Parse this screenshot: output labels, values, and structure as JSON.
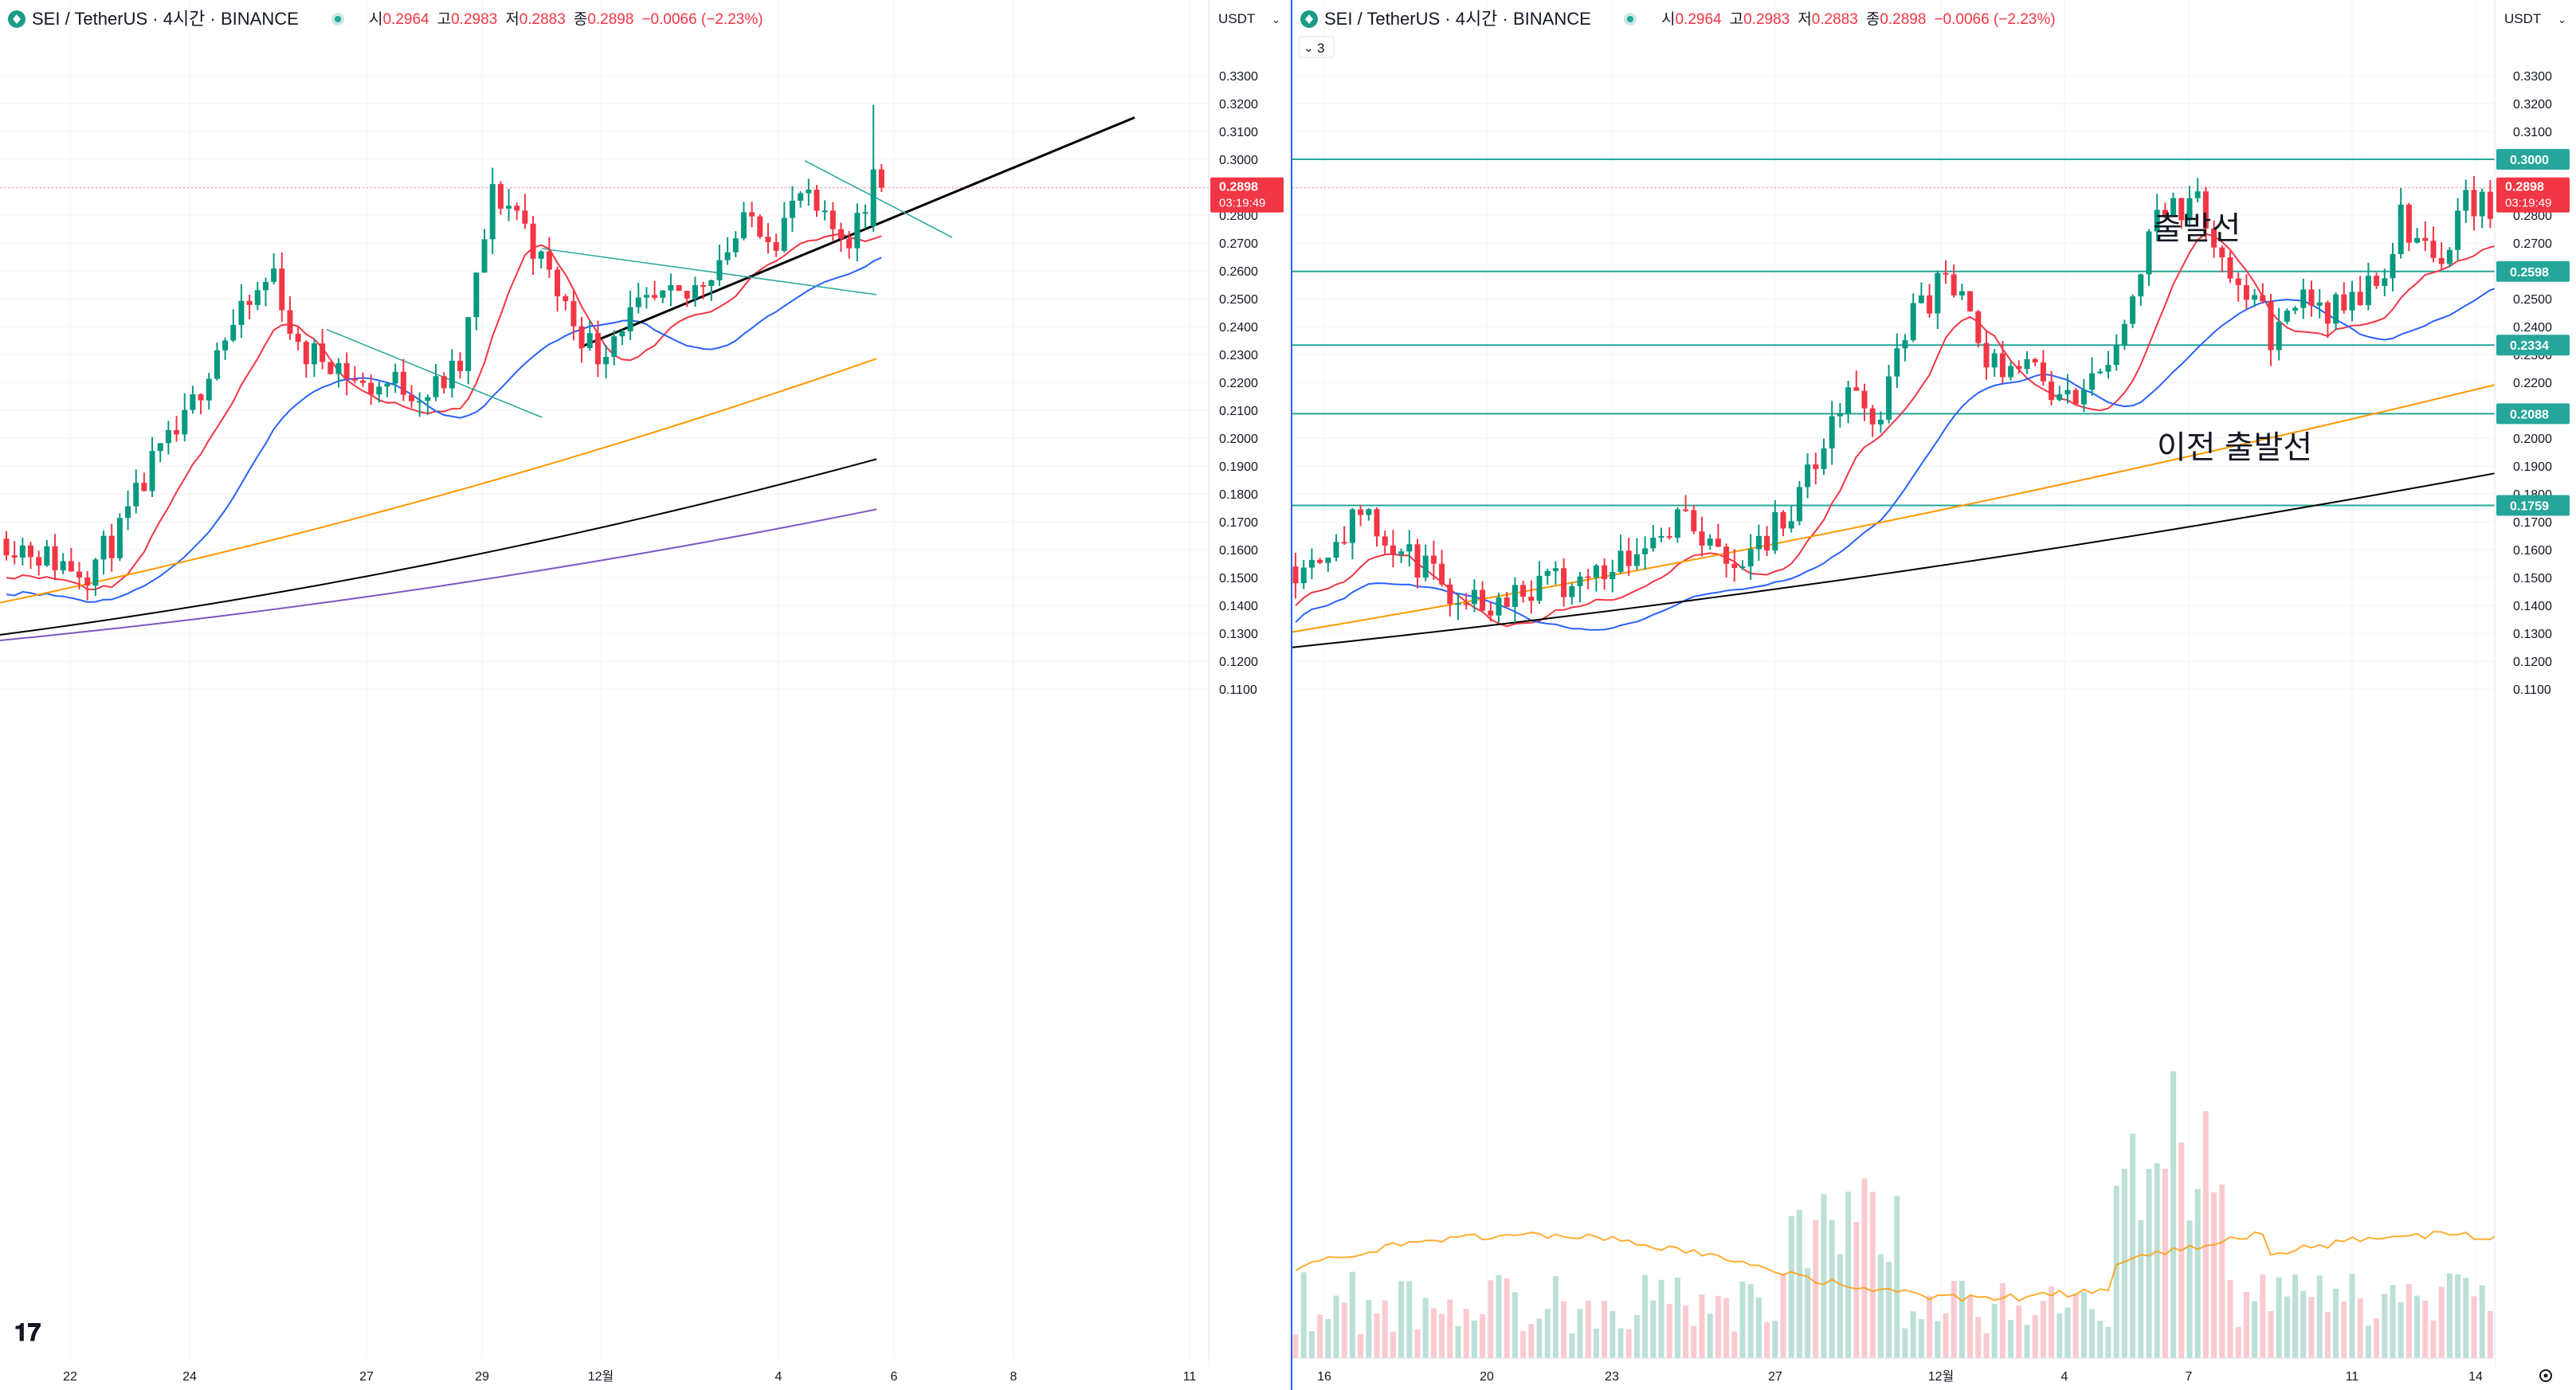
{
  "legend": {
    "symbol": "SEI",
    "quote": "TetherUS",
    "interval": "4시간",
    "exchange": "BINANCE",
    "ohlc": [
      {
        "key": "시",
        "value": "0.2964"
      },
      {
        "key": "고",
        "value": "0.2983"
      },
      {
        "key": "저",
        "value": "0.2883"
      },
      {
        "key": "종",
        "value": "0.2898"
      }
    ],
    "change": "−0.0066 (−2.23%)"
  },
  "currency_button": "USDT",
  "indicator_count": "3",
  "current_price": "0.2898",
  "countdown": "03:19:49",
  "colors": {
    "up": "#089981",
    "down": "#f23645",
    "ma_short": "#f23645",
    "ma_mid": "#2962ff",
    "ma_orange": "#ff9800",
    "ma_long": "#000000",
    "ma_purple": "#7e57c2",
    "level_line": "#26a69a",
    "accent": "#2962ff"
  },
  "left_chart": {
    "price_ticks": [
      "0.3300",
      "0.3200",
      "0.3100",
      "0.3000",
      "0.2900",
      "0.2800",
      "0.2700",
      "0.2600",
      "0.2500",
      "0.2400",
      "0.2300",
      "0.2200",
      "0.2100",
      "0.2000",
      "0.1900",
      "0.1800",
      "0.1700",
      "0.1600",
      "0.1500",
      "0.1400",
      "0.1300",
      "0.1200",
      "0.1100"
    ],
    "time_ticks": [
      "22",
      "24",
      "27",
      "29",
      "12월",
      "4",
      "6",
      "8",
      "11"
    ]
  },
  "right_chart": {
    "price_ticks": [
      "0.3300",
      "0.3200",
      "0.3100",
      "0.3000",
      "0.2900",
      "0.2800",
      "0.2700",
      "0.2600",
      "0.2500",
      "0.2400",
      "0.2300",
      "0.2200",
      "0.2100",
      "0.2000",
      "0.1900",
      "0.1800",
      "0.1700",
      "0.1600",
      "0.1500",
      "0.1400",
      "0.1300",
      "0.1200",
      "0.1100"
    ],
    "time_ticks": [
      "16",
      "20",
      "23",
      "27",
      "12월",
      "4",
      "7",
      "11",
      "14"
    ],
    "levels": [
      "0.3000",
      "0.2598",
      "0.2334",
      "0.2088",
      "0.1759"
    ],
    "annotations": [
      "출발선",
      "이전 출발선"
    ]
  },
  "chart_data": [
    {
      "type": "candlestick",
      "title": "SEI / TetherUS · 4시간 · BINANCE",
      "ylim": [
        0.1065,
        0.3355
      ],
      "candles_ohlc_sample": [
        [
          0.16,
          0.168,
          0.156,
          0.165
        ],
        [
          0.165,
          0.172,
          0.162,
          0.16
        ],
        [
          0.16,
          0.164,
          0.143,
          0.145
        ],
        [
          0.145,
          0.162,
          0.143,
          0.16
        ],
        [
          0.16,
          0.175,
          0.158,
          0.17
        ],
        [
          0.17,
          0.188,
          0.169,
          0.186
        ],
        [
          0.186,
          0.206,
          0.184,
          0.201
        ],
        [
          0.201,
          0.206,
          0.191,
          0.194
        ],
        [
          0.194,
          0.227,
          0.192,
          0.227
        ],
        [
          0.227,
          0.243,
          0.224,
          0.24
        ],
        [
          0.24,
          0.251,
          0.236,
          0.248
        ],
        [
          0.248,
          0.26,
          0.241,
          0.253
        ],
        [
          0.253,
          0.255,
          0.227,
          0.229
        ],
        [
          0.229,
          0.23,
          0.21,
          0.215
        ],
        [
          0.215,
          0.23,
          0.21,
          0.227
        ],
        [
          0.227,
          0.287,
          0.224,
          0.285
        ],
        [
          0.285,
          0.298,
          0.263,
          0.264
        ],
        [
          0.264,
          0.266,
          0.244,
          0.247
        ],
        [
          0.247,
          0.251,
          0.228,
          0.23
        ],
        [
          0.23,
          0.253,
          0.228,
          0.245
        ],
        [
          0.245,
          0.254,
          0.24,
          0.251
        ],
        [
          0.251,
          0.267,
          0.25,
          0.266
        ],
        [
          0.266,
          0.285,
          0.26,
          0.281
        ],
        [
          0.281,
          0.294,
          0.27,
          0.273
        ],
        [
          0.273,
          0.279,
          0.27,
          0.276
        ],
        [
          0.276,
          0.288,
          0.271,
          0.285
        ],
        [
          0.285,
          0.3195,
          0.282,
          0.2964
        ],
        [
          0.2964,
          0.2983,
          0.2883,
          0.2898
        ]
      ],
      "moving_averages": [
        {
          "name": "red MA",
          "color": "#f23645",
          "last": 0.274
        },
        {
          "name": "blue MA",
          "color": "#2962ff",
          "last": 0.2555
        },
        {
          "name": "orange MA",
          "color": "#ff9800",
          "last": 0.2285
        },
        {
          "name": "black MA",
          "color": "#000000",
          "last": 0.1925
        },
        {
          "name": "purple MA",
          "color": "#7e57c2",
          "last": 0.1745
        }
      ],
      "drawings": [
        "trendline",
        "triangle wedge"
      ]
    },
    {
      "type": "candlestick",
      "title": "SEI / TetherUS · 4시간 · BINANCE",
      "ylim": [
        0.1065,
        0.3355
      ],
      "horizontal_levels": [
        0.3,
        0.2598,
        0.2334,
        0.2088,
        0.1759
      ],
      "annotations": [
        {
          "text": "출발선",
          "level": 0.3
        },
        {
          "text": "이전 출발선",
          "level": 0.2598
        }
      ],
      "moving_averages": [
        {
          "name": "red MA",
          "color": "#f23645",
          "last": 0.274
        },
        {
          "name": "blue MA",
          "color": "#2962ff",
          "last": 0.2575
        },
        {
          "name": "orange MA",
          "color": "#ff9800",
          "last": 0.231
        },
        {
          "name": "black MA",
          "color": "#000000",
          "last": 0.1965
        }
      ],
      "volume": true
    }
  ]
}
